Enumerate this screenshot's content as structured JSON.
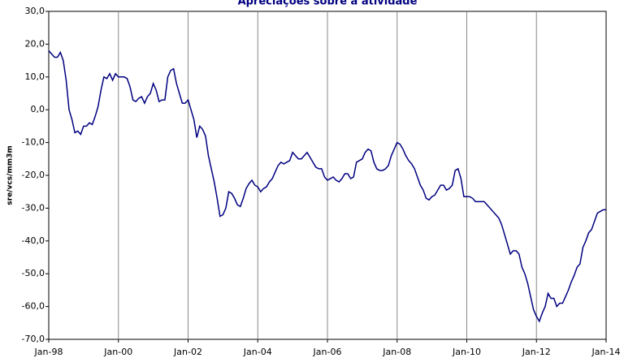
{
  "chart_data": {
    "type": "line",
    "title": "Apreciações sobre a atividade",
    "y_label": "sre/vcs/mm3m",
    "categories": [
      "Jan-98",
      null,
      null,
      null,
      null,
      null,
      null,
      null,
      null,
      null,
      null,
      null,
      null,
      null,
      null,
      null,
      null,
      null,
      null,
      null,
      null,
      null,
      null,
      null,
      "Jan-00",
      null,
      null,
      null,
      null,
      null,
      null,
      null,
      null,
      null,
      null,
      null,
      null,
      null,
      null,
      null,
      null,
      null,
      null,
      null,
      null,
      null,
      null,
      null,
      "Jan-02",
      null,
      null,
      null,
      null,
      null,
      null,
      null,
      null,
      null,
      null,
      null,
      null,
      null,
      null,
      null,
      null,
      null,
      null,
      null,
      null,
      null,
      null,
      null,
      "Jan-04",
      null,
      null,
      null,
      null,
      null,
      null,
      null,
      null,
      null,
      null,
      null,
      null,
      null,
      null,
      null,
      null,
      null,
      null,
      null,
      null,
      null,
      null,
      null,
      "Jan-06",
      null,
      null,
      null,
      null,
      null,
      null,
      null,
      null,
      null,
      null,
      null,
      null,
      null,
      null,
      null,
      null,
      null,
      null,
      null,
      null,
      null,
      null,
      null,
      "Jan-08",
      null,
      null,
      null,
      null,
      null,
      null,
      null,
      null,
      null,
      null,
      null,
      null,
      null,
      null,
      null,
      null,
      null,
      null,
      null,
      null,
      null,
      null,
      null,
      "Jan-10",
      null,
      null,
      null,
      null,
      null,
      null,
      null,
      null,
      null,
      null,
      null,
      null,
      null,
      null,
      null,
      null,
      null,
      null,
      null,
      null,
      null,
      null,
      null,
      "Jan-12",
      null,
      null,
      null,
      null,
      null,
      null,
      null,
      null,
      null,
      null,
      null,
      null,
      null,
      null,
      null,
      null,
      null,
      null,
      null,
      null,
      null,
      null,
      null,
      "Jan-14"
    ],
    "series": [
      {
        "color": "#000080",
        "values": [
          18,
          17,
          16,
          16,
          17.5,
          15,
          9,
          0,
          -3,
          -7,
          -6.5,
          -7.5,
          -5,
          -5,
          -4,
          -4.5,
          -2,
          1,
          6,
          10,
          9.5,
          11,
          9,
          11,
          10,
          10,
          10,
          9.5,
          7,
          3,
          2.5,
          3.5,
          4,
          2,
          4,
          5,
          8,
          6,
          2.5,
          3,
          3,
          10,
          12,
          12.5,
          8,
          5,
          2,
          2,
          3,
          0,
          -3,
          -8.5,
          -5,
          -6,
          -8,
          -14,
          -18,
          -22,
          -27,
          -32.5,
          -32,
          -30,
          -25,
          -25.5,
          -27,
          -29,
          -29.5,
          -27,
          -24,
          -22.5,
          -21.5,
          -23,
          -23.5,
          -25,
          -24,
          -23.5,
          -22,
          -21,
          -19,
          -17,
          -16,
          -16.5,
          -16,
          -15.5,
          -13,
          -14,
          -15,
          -15,
          -14,
          -13,
          -14.5,
          -16,
          -17.5,
          -18,
          -18,
          -20.5,
          -21.5,
          -21,
          -20.5,
          -21.5,
          -22,
          -21,
          -19.5,
          -19.5,
          -21,
          -20.5,
          -16,
          -15.5,
          -15,
          -13,
          -12,
          -12.5,
          -16,
          -18,
          -18.5,
          -18.5,
          -18,
          -17,
          -14,
          -12,
          -10,
          -10.5,
          -12,
          -14,
          -15.5,
          -16.5,
          -18,
          -20.5,
          -23,
          -24.5,
          -27,
          -27.5,
          -26.5,
          -26,
          -24.5,
          -23,
          -23,
          -24.5,
          -24,
          -23,
          -18.5,
          -18,
          -21,
          -26.5,
          -26.5,
          -26.5,
          -27,
          -28,
          -28,
          -28,
          -28,
          -29,
          -30,
          -31,
          -32,
          -33,
          -35,
          -38,
          -41,
          -44,
          -43,
          -43,
          -44,
          -48,
          -50,
          -53,
          -57,
          -61,
          -63,
          -64.5,
          -62,
          -60,
          -56,
          -57.5,
          -57.5,
          -60,
          -59,
          -59,
          -57,
          -55,
          -52.5,
          -50.5,
          -48,
          -47,
          -42,
          -40,
          -37.5,
          -36.5,
          -34,
          -31.5,
          -31,
          -30.5,
          -30.5
        ]
      }
    ],
    "ylim": [
      -70,
      30
    ],
    "yticks": [
      {
        "value": -70,
        "label": "-70,0"
      },
      {
        "value": -60,
        "label": "-60,0"
      },
      {
        "value": -50,
        "label": "-50,0"
      },
      {
        "value": -40,
        "label": "-40,0"
      },
      {
        "value": -30,
        "label": "-30,0"
      },
      {
        "value": -20,
        "label": "-20,0"
      },
      {
        "value": -10,
        "label": "-10,0"
      },
      {
        "value": 0,
        "label": "0,0"
      },
      {
        "value": 10,
        "label": "10,0"
      },
      {
        "value": 20,
        "label": "20,0"
      },
      {
        "value": 30,
        "label": "30,0"
      }
    ],
    "grid": true
  }
}
